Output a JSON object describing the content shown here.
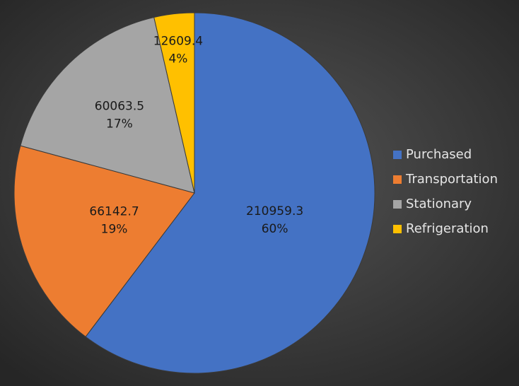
{
  "chart_data": {
    "type": "pie",
    "categories": [
      "Purchased",
      "Transportation",
      "Stationary",
      "Refrigeration"
    ],
    "values": [
      210959.3,
      66142.7,
      60063.5,
      12609.4
    ],
    "percentages": [
      60,
      19,
      17,
      4
    ],
    "percentage_labels": [
      "60%",
      "19%",
      "17%",
      "4%"
    ],
    "colors": [
      "#4472c4",
      "#ed7d31",
      "#a5a5a5",
      "#ffc000"
    ],
    "legend": "right"
  }
}
